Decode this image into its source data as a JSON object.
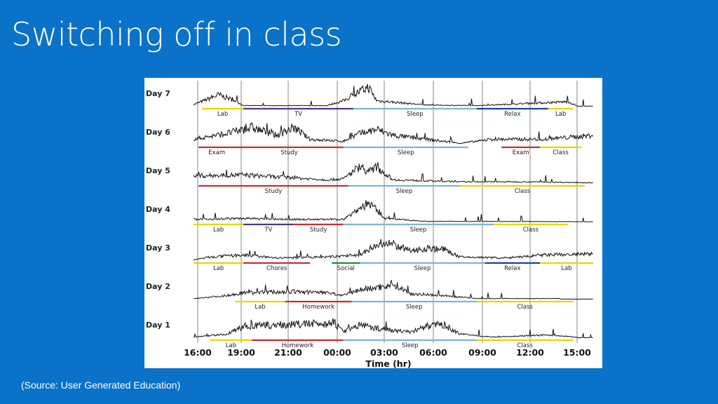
{
  "slide": {
    "title": "Switching off in class",
    "source": "(Source: User Generated Education)"
  },
  "chart_data": {
    "type": "line",
    "title": "",
    "xlabel": "Time (hr)",
    "ylabel": "",
    "x_ticks": [
      "16:00",
      "19:00",
      "21:00",
      "00:00",
      "03:00",
      "06:00",
      "09:00",
      "12:00",
      "15:00"
    ],
    "x_range_hours": [
      16,
      40
    ],
    "grid": true,
    "colors": {
      "lab": "#e6d600",
      "study": "#c0303a",
      "sleep": "#7fb3d9",
      "relax": "#1f3f99",
      "social": "#1f8a3a",
      "tv": "#4a3a8a"
    },
    "days": [
      {
        "name": "Day 7",
        "segments": [
          {
            "label": "Lab",
            "start": 16.5,
            "end": 19.0,
            "color": "lab"
          },
          {
            "label": "TV",
            "start": 19.0,
            "end": 25.6,
            "color": "tv"
          },
          {
            "label": "Sleep",
            "start": 25.6,
            "end": 33.0,
            "color": "sleep"
          },
          {
            "label": "Relax",
            "start": 33.0,
            "end": 37.3,
            "color": "relax"
          },
          {
            "label": "Lab",
            "start": 37.3,
            "end": 38.8,
            "color": "lab"
          }
        ]
      },
      {
        "name": "Day 6",
        "segments": [
          {
            "label": "Exam",
            "start": 16.3,
            "end": 18.5,
            "color": "study"
          },
          {
            "label": "Study",
            "start": 18.5,
            "end": 25.0,
            "color": "study"
          },
          {
            "label": "Sleep",
            "start": 25.0,
            "end": 32.5,
            "color": "sleep"
          },
          {
            "label": "Exam",
            "start": 34.5,
            "end": 36.8,
            "color": "study"
          },
          {
            "label": "Class",
            "start": 36.8,
            "end": 39.3,
            "color": "lab"
          }
        ]
      },
      {
        "name": "Day 5",
        "segments": [
          {
            "label": "Study",
            "start": 16.3,
            "end": 25.3,
            "color": "study"
          },
          {
            "label": "Sleep",
            "start": 25.3,
            "end": 32.0,
            "color": "sleep"
          },
          {
            "label": "Class",
            "start": 32.0,
            "end": 39.5,
            "color": "lab"
          }
        ]
      },
      {
        "name": "Day 4",
        "segments": [
          {
            "label": "Lab",
            "start": 16.0,
            "end": 19.0,
            "color": "lab"
          },
          {
            "label": "TV",
            "start": 19.0,
            "end": 22.0,
            "color": "tv"
          },
          {
            "label": "Study",
            "start": 22.0,
            "end": 25.0,
            "color": "study"
          },
          {
            "label": "Sleep",
            "start": 25.0,
            "end": 34.0,
            "color": "sleep"
          },
          {
            "label": "Class",
            "start": 34.0,
            "end": 38.5,
            "color": "lab"
          }
        ]
      },
      {
        "name": "Day 3",
        "segments": [
          {
            "label": "Lab",
            "start": 16.0,
            "end": 19.0,
            "color": "lab"
          },
          {
            "label": "Chores",
            "start": 19.0,
            "end": 23.0,
            "color": "study"
          },
          {
            "label": "Social",
            "start": 24.3,
            "end": 26.0,
            "color": "social"
          },
          {
            "label": "Sleep",
            "start": 26.0,
            "end": 33.5,
            "color": "sleep"
          },
          {
            "label": "Relax",
            "start": 33.5,
            "end": 36.8,
            "color": "relax"
          },
          {
            "label": "Lab",
            "start": 36.8,
            "end": 40.0,
            "color": "lab"
          }
        ]
      },
      {
        "name": "Day 2",
        "segments": [
          {
            "label": "Lab",
            "start": 18.5,
            "end": 21.5,
            "color": "lab"
          },
          {
            "label": "Homework",
            "start": 21.5,
            "end": 25.5,
            "color": "study"
          },
          {
            "label": "Sleep",
            "start": 25.5,
            "end": 33.0,
            "color": "sleep"
          },
          {
            "label": "Class",
            "start": 33.0,
            "end": 38.8,
            "color": "lab"
          }
        ]
      },
      {
        "name": "Day 1",
        "segments": [
          {
            "label": "Lab",
            "start": 17.0,
            "end": 19.5,
            "color": "lab"
          },
          {
            "label": "Homework",
            "start": 19.5,
            "end": 25.0,
            "color": "study"
          },
          {
            "label": "Sleep",
            "start": 25.0,
            "end": 33.0,
            "color": "sleep"
          },
          {
            "label": "Class",
            "start": 33.0,
            "end": 38.8,
            "color": "lab"
          }
        ]
      }
    ]
  }
}
